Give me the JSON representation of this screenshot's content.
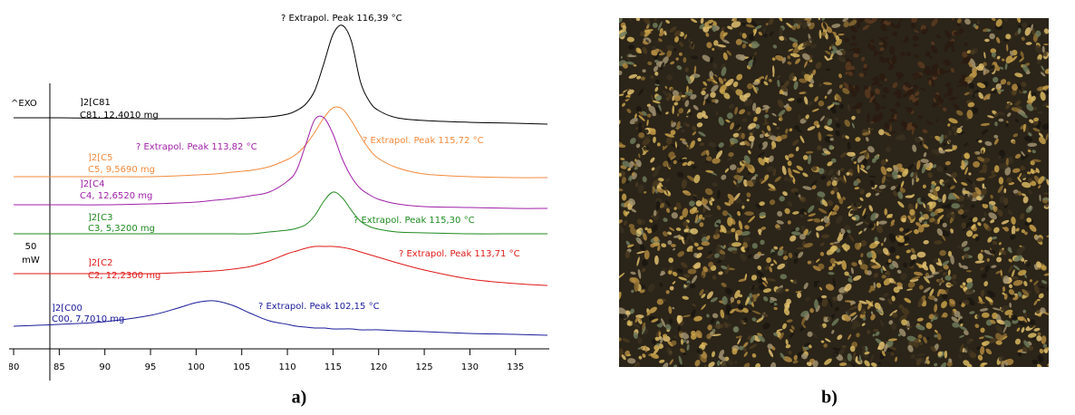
{
  "chart_data": {
    "type": "line",
    "exo_label": "^EXO",
    "scale_bar": {
      "value": "50",
      "unit": "mW"
    },
    "x": [
      80,
      85,
      90,
      95,
      98,
      100,
      102,
      104,
      106,
      108,
      110,
      111,
      112,
      113,
      114,
      115,
      116,
      117,
      118,
      119,
      120,
      122,
      125,
      130,
      135,
      138.5
    ],
    "xlim": [
      79.5,
      138.7
    ],
    "xticks": [
      80,
      85,
      90,
      95,
      100,
      105,
      110,
      115,
      120,
      125,
      130,
      135
    ],
    "ylim": [
      0,
      360
    ],
    "series": [
      {
        "name": "]2[C81",
        "sample": "C81, 12,4010 mg",
        "color": "#000000",
        "peak_label": "? Extrapol. Peak  116,39 °C",
        "values": [
          255,
          255,
          254.5,
          254,
          254,
          254,
          254,
          254,
          255,
          256,
          259,
          263,
          270,
          285,
          315,
          347,
          357,
          340,
          295,
          273,
          263,
          255,
          252,
          250,
          249,
          248
        ]
      },
      {
        "name": "]2[C5",
        "sample": "C5, 9,5690 mg",
        "color": "#f28a3c",
        "peak_label": "? Extrapol. Peak  115,72 °C",
        "values": [
          190,
          190,
          190,
          190,
          191,
          192,
          193,
          195,
          197,
          201,
          209,
          215,
          225,
          239,
          255,
          266,
          265,
          252,
          235,
          220,
          210,
          200,
          193,
          190,
          189,
          189
        ]
      },
      {
        "name": "]2[C4",
        "sample": "C4, 12,6520 mg",
        "color": "#a020a8",
        "peak_label": "? Extrapol. Peak  113,82 °C",
        "values": [
          159,
          159,
          159,
          160,
          161,
          162,
          164,
          166,
          169,
          173,
          185,
          197,
          225,
          253,
          255,
          237,
          210,
          190,
          177,
          170,
          165,
          160,
          157,
          156,
          155,
          155
        ]
      },
      {
        "name": "]2[C3",
        "sample": "C3, 5,3200 mg",
        "color": "#1e8a1e",
        "peak_label": "? Extrapol. Peak  115,30 °C",
        "values": [
          127,
          127,
          127,
          127,
          127,
          127,
          127,
          127,
          127,
          129,
          131,
          133,
          137,
          147,
          163,
          173,
          167,
          153,
          141,
          135,
          132,
          129,
          128,
          127,
          127,
          127
        ]
      },
      {
        "name": "]2[C2",
        "sample": "C2, 12,2300 mg",
        "color": "#e01818",
        "peak_label": "? Extrapol. Peak  113,71 °C",
        "values": [
          83,
          83,
          83,
          83,
          84,
          85,
          86,
          88,
          91,
          97,
          105,
          108,
          111,
          113,
          113,
          113,
          112,
          110,
          107,
          104,
          101,
          95,
          87,
          77,
          72,
          70
        ]
      },
      {
        "name": "]2[C00",
        "sample": "C00, 7,7010 mg",
        "color": "#1a1a9a",
        "peak_label": "? Extrapol. Peak  102,15 °C",
        "values": [
          25,
          27,
          30,
          37,
          45,
          51,
          53,
          48,
          39,
          31,
          27,
          25,
          24,
          23,
          23,
          22,
          22,
          22,
          21,
          21,
          21,
          20,
          19,
          17,
          16,
          15
        ]
      }
    ],
    "captions": [
      "a)",
      "b)"
    ]
  }
}
